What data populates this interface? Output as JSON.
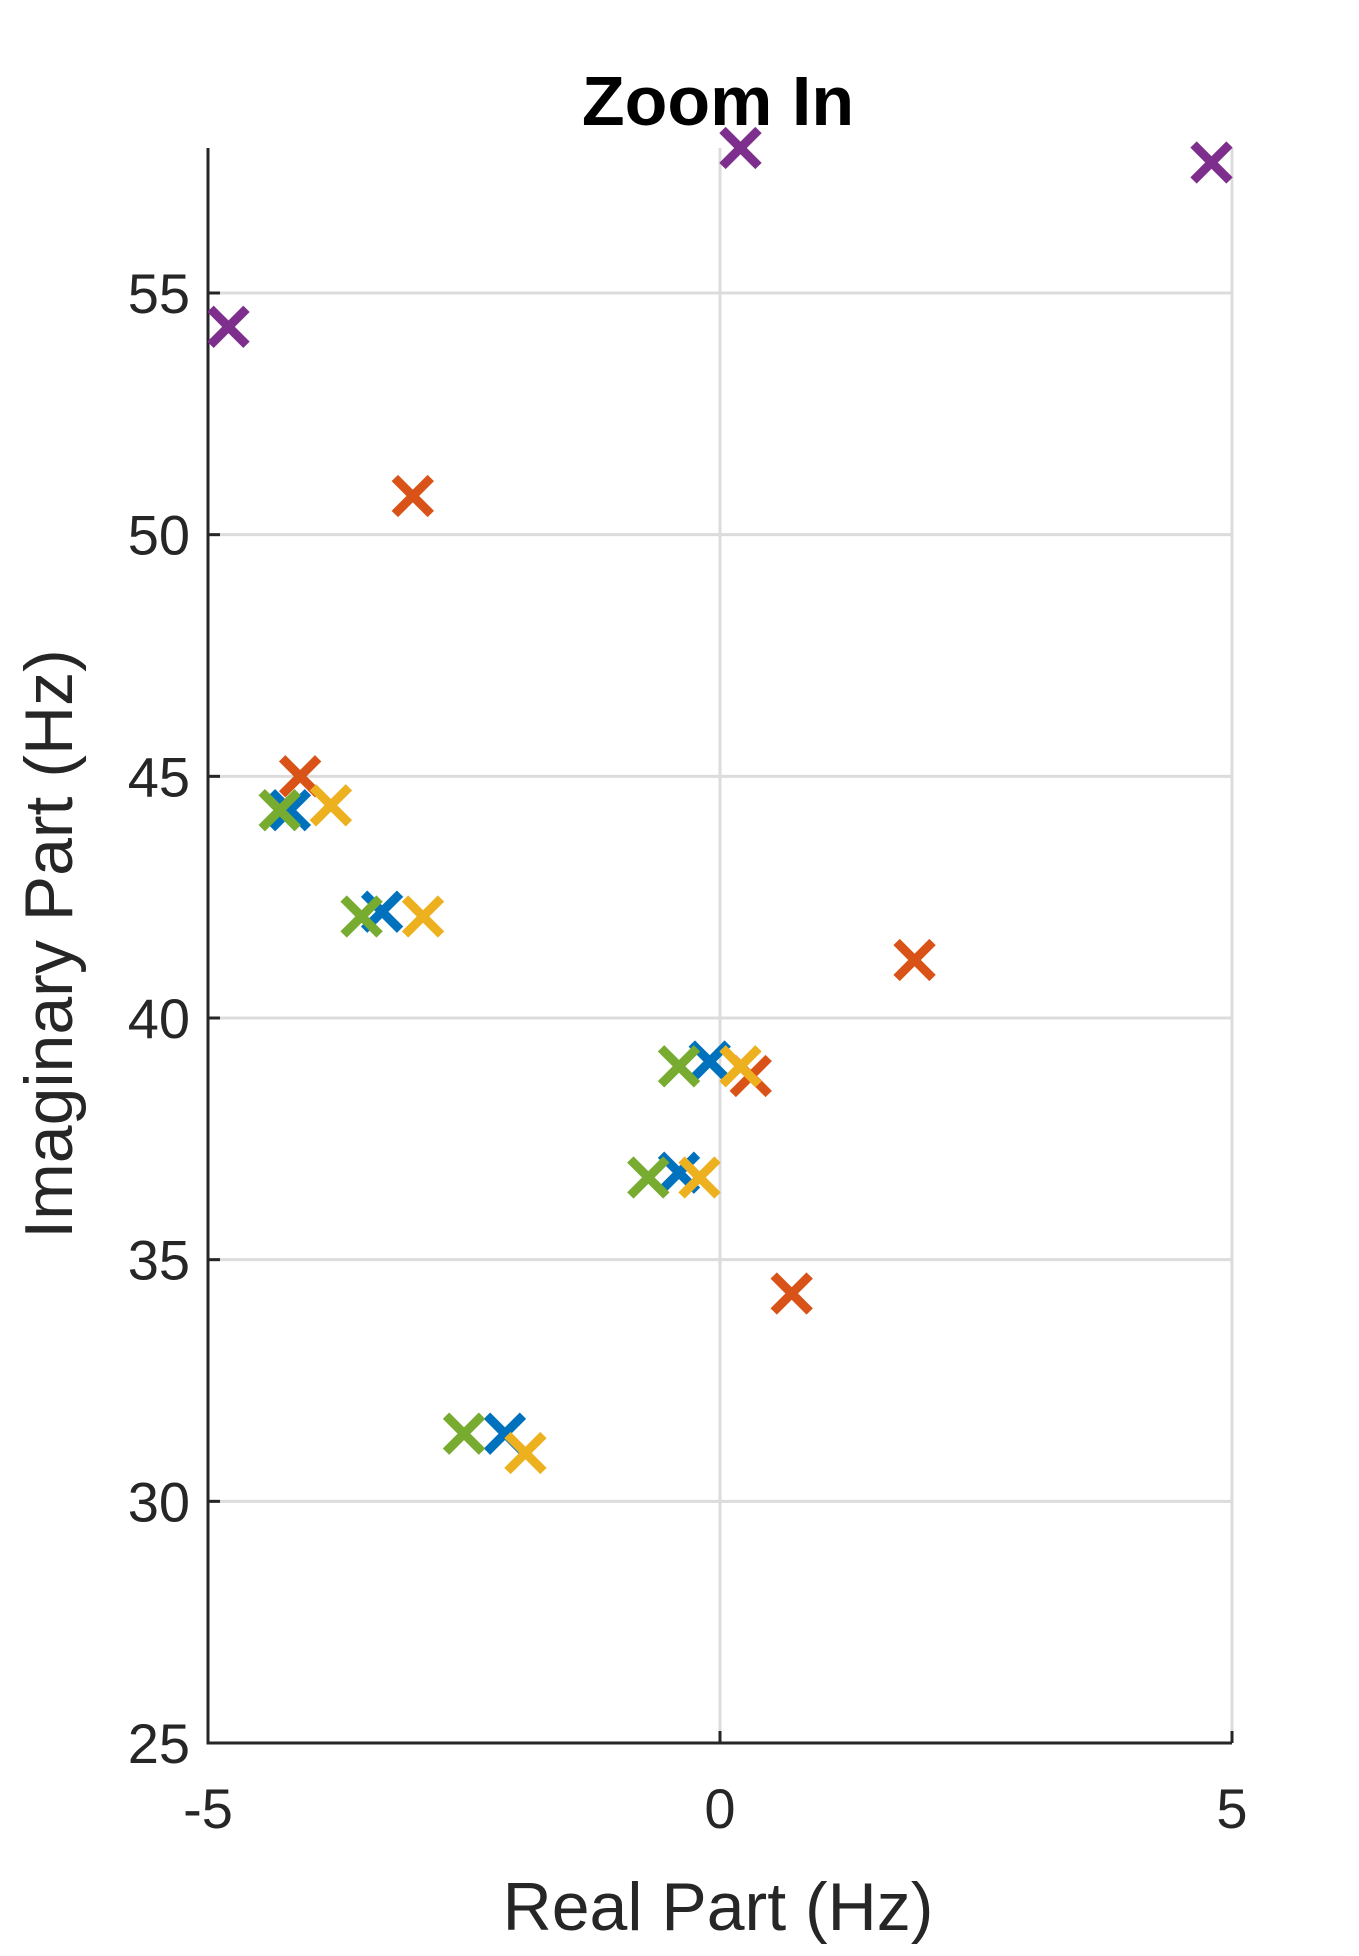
{
  "chart_data": {
    "type": "scatter",
    "title": "Zoom In",
    "xlabel": "Real Part (Hz)",
    "ylabel": "Imaginary Part (Hz)",
    "xlim": [
      -5,
      5
    ],
    "ylim": [
      25,
      58
    ],
    "xticks": [
      -5,
      0,
      5
    ],
    "yticks": [
      25,
      30,
      35,
      40,
      45,
      50,
      55
    ],
    "xtick_labels": [
      "-5",
      "0",
      "5"
    ],
    "ytick_labels": [
      "25",
      "30",
      "35",
      "40",
      "45",
      "50",
      "55"
    ],
    "grid": true,
    "marker": "x",
    "series": [
      {
        "color": "#0072BD",
        "points": [
          [
            -4.2,
            44.3
          ],
          [
            -3.3,
            42.2
          ],
          [
            -0.1,
            39.1
          ],
          [
            -0.4,
            36.8
          ],
          [
            -2.1,
            31.4
          ]
        ]
      },
      {
        "color": "#D95319",
        "points": [
          [
            -4.1,
            45.0
          ],
          [
            -3.0,
            50.8
          ],
          [
            1.9,
            41.2
          ],
          [
            0.3,
            38.8
          ],
          [
            0.7,
            34.3
          ]
        ]
      },
      {
        "color": "#EDB120",
        "points": [
          [
            -3.8,
            44.4
          ],
          [
            -2.9,
            42.1
          ],
          [
            0.2,
            39.0
          ],
          [
            -0.2,
            36.7
          ],
          [
            -1.9,
            31.0
          ]
        ]
      },
      {
        "color": "#7E2F8E",
        "points": [
          [
            -4.8,
            54.3
          ],
          [
            0.2,
            58.0
          ],
          [
            4.8,
            57.7
          ]
        ]
      },
      {
        "color": "#77AC30",
        "points": [
          [
            -4.3,
            44.3
          ],
          [
            -3.5,
            42.1
          ],
          [
            -0.4,
            39.0
          ],
          [
            -0.7,
            36.7
          ],
          [
            -2.5,
            31.4
          ]
        ]
      }
    ]
  }
}
